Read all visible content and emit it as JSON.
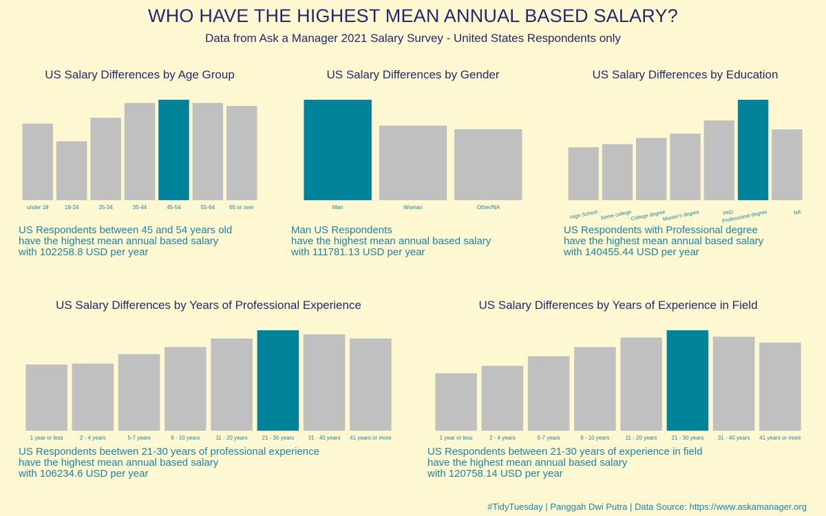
{
  "header": {
    "title": "WHO HAVE THE HIGHEST MEAN ANNUAL BASED SALARY?",
    "subtitle": "Data from Ask a Manager 2021 Salary Survey - United States Respondents only"
  },
  "colors": {
    "background": "#fdf8d1",
    "bar": "#c0c0c0",
    "highlight": "#00829b",
    "title": "#24276b",
    "annotation": "#1a84a1"
  },
  "panels": [
    {
      "title": "US Salary Differences by Age Group",
      "note": [
        "US Respondents between 45 and 54 years old",
        "have the highest mean annual based salary",
        "with 102258.8 USD per year"
      ]
    },
    {
      "title": "US Salary Differences by Gender",
      "note": [
        "Man US Respondents",
        "have the highest mean annual based salary",
        "with 111781.13 USD per year"
      ]
    },
    {
      "title": "US Salary Differences by Education",
      "note": [
        "US Respondents with Professional degree",
        "have the highest mean annual based salary",
        "with 140455.44 USD per year"
      ]
    },
    {
      "title": "US Salary Differences by Years of Professional Experience",
      "note": [
        "US Respondents beetwen 21-30 years of professional experience",
        "have the highest mean annual based salary",
        "with 106234.6 USD per year"
      ]
    },
    {
      "title": "US Salary Differences by Years of Experience in Field",
      "note": [
        "US Respondents between 21-30 years of experience in field",
        "have the highest mean annual based salary",
        "with 120758.14 USD per year"
      ]
    }
  ],
  "chart_data": [
    {
      "type": "bar",
      "title": "US Salary Differences by Age Group",
      "categories": [
        "under 18",
        "18-24",
        "25-34",
        "35-44",
        "45-54",
        "55-64",
        "65 or over"
      ],
      "values": [
        78000,
        60000,
        84000,
        99000,
        102258.8,
        99000,
        96000
      ],
      "highlight": "45-54",
      "ylim": [
        0,
        102258.8
      ],
      "grid": false
    },
    {
      "type": "bar",
      "title": "US Salary Differences by Gender",
      "categories": [
        "Man",
        "Woman",
        "Other/NA"
      ],
      "values": [
        111781.13,
        83000,
        79000
      ],
      "highlight": "Man",
      "ylim": [
        0,
        111781.13
      ],
      "grid": false
    },
    {
      "type": "bar",
      "title": "US Salary Differences by Education",
      "categories": [
        "High School",
        "Some college",
        "College degree",
        "Master's degree",
        "PhD",
        "Professional degree",
        "NA"
      ],
      "values": [
        74000,
        78500,
        87000,
        93000,
        111500,
        140455.44,
        99000
      ],
      "highlight": "Professional degree",
      "ylim": [
        0,
        140455.44
      ],
      "grid": false
    },
    {
      "type": "bar",
      "title": "US Salary Differences by Years of Professional Experience",
      "categories": [
        "1 year or less",
        "2 - 4 years",
        "5-7 years",
        "8 - 10 years",
        "11 - 20 years",
        "21 - 30 years",
        "31 - 40 years",
        "41 years or more"
      ],
      "values": [
        70000,
        71000,
        81000,
        88500,
        97500,
        106234.6,
        102000,
        97500
      ],
      "highlight": "21 - 30 years",
      "ylim": [
        0,
        106234.6
      ],
      "grid": false
    },
    {
      "type": "bar",
      "title": "US Salary Differences by Years of Experience in Field",
      "categories": [
        "1 year or less",
        "2 - 4 years",
        "5-7 years",
        "8 - 10 years",
        "11 - 20 years",
        "21 - 30 years",
        "31 - 40 years",
        "41 years or more"
      ],
      "values": [
        69000,
        78000,
        89500,
        100500,
        112000,
        120758.14,
        113000,
        106000
      ],
      "highlight": "21 - 30 years",
      "ylim": [
        0,
        120758.14
      ],
      "grid": false
    }
  ],
  "footer": {
    "text": "#TidyTuesday | Panggah Dwi Putra | Data Source: https://www.askamanager.org"
  }
}
